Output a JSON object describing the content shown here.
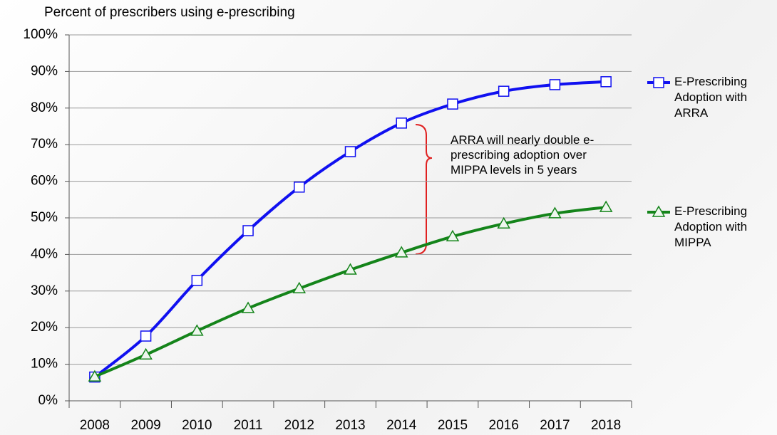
{
  "chart_data": {
    "type": "line",
    "title": "Percent of prescribers using e-prescribing",
    "annotation": "ARRA will nearly double e-prescribing adoption over MIPPA levels in 5 years",
    "categories": [
      "2008",
      "2009",
      "2010",
      "2011",
      "2012",
      "2013",
      "2014",
      "2015",
      "2016",
      "2017",
      "2018"
    ],
    "series": [
      {
        "name": "E-Prescribing Adoption with ARRA",
        "color": "#1010f0",
        "marker": "square",
        "values": [
          6.5,
          17.7,
          32.9,
          46.5,
          58.4,
          68.1,
          75.9,
          81.1,
          84.6,
          86.4,
          87.2
        ]
      },
      {
        "name": "E-Prescribing Adoption with MIPPA",
        "color": "#14841a",
        "marker": "triangle",
        "values": [
          6.6,
          12.6,
          19.1,
          25.3,
          30.7,
          35.8,
          40.5,
          44.9,
          48.4,
          51.2,
          52.9
        ]
      }
    ],
    "ylim": [
      0,
      100
    ],
    "yticks": [
      {
        "value": 0,
        "label": "0%"
      },
      {
        "value": 10,
        "label": "10%"
      },
      {
        "value": 20,
        "label": "20%"
      },
      {
        "value": 30,
        "label": "30%"
      },
      {
        "value": 40,
        "label": "40%"
      },
      {
        "value": 50,
        "label": "50%"
      },
      {
        "value": 60,
        "label": "60%"
      },
      {
        "value": 70,
        "label": "70%"
      },
      {
        "value": 80,
        "label": "80%"
      },
      {
        "value": 90,
        "label": "90%"
      },
      {
        "value": 100,
        "label": "100%"
      }
    ],
    "grid": true
  }
}
